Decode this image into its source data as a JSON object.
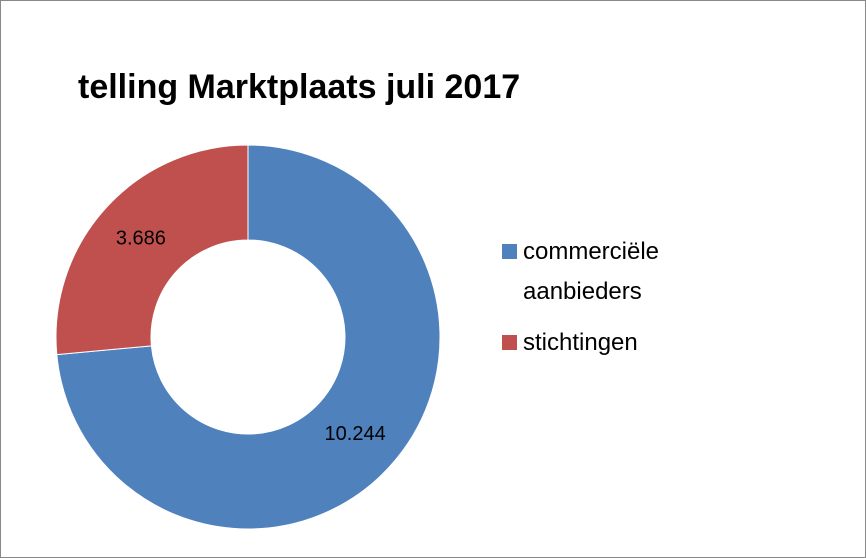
{
  "chart_data": {
    "type": "donut",
    "title": "telling Marktplaats juli 2017",
    "categories": [
      "commerciële aanbieders",
      "stichtingen"
    ],
    "values": [
      10244,
      3686
    ],
    "value_labels": [
      "10.244",
      "3.686"
    ],
    "colors": [
      "#4f81bd",
      "#c0504d"
    ],
    "legend": "right"
  }
}
